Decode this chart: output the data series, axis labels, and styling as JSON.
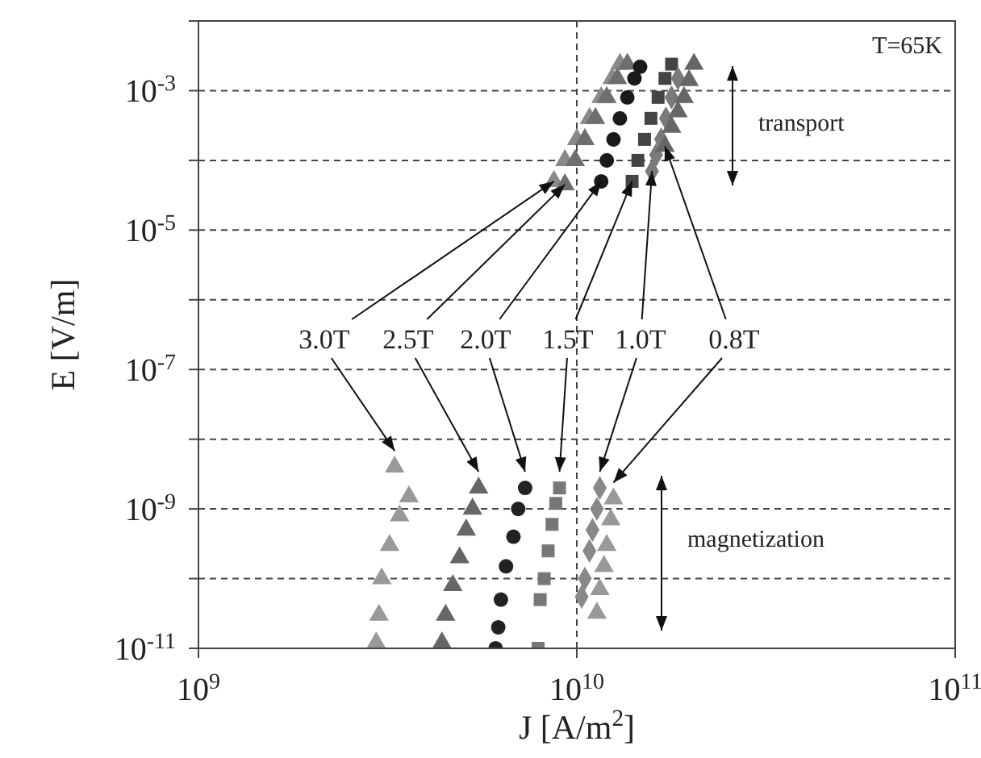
{
  "chart_data": {
    "type": "scatter",
    "xlabel": "J [A/m$^{2}$]",
    "ylabel": "E [V/m]",
    "xlim": [
      1000000000.0,
      100000000000.0
    ],
    "ylim": [
      1e-11,
      0.01
    ],
    "log": "xy",
    "grid": true,
    "xticks": [
      {
        "value": 1000000000.0,
        "label": "10$^{9}$"
      },
      {
        "value": 10000000000.0,
        "label": "10$^{10}$"
      },
      {
        "value": 100000000000.0,
        "label": "10$^{11}$"
      }
    ],
    "yticks": [
      {
        "value": 1e-11,
        "label": "10$^{-11}$"
      },
      {
        "value": 1e-10,
        "label": null
      },
      {
        "value": 1e-09,
        "label": "10$^{-9}$"
      },
      {
        "value": 1e-08,
        "label": null
      },
      {
        "value": 1e-07,
        "label": "10$^{-7}$"
      },
      {
        "value": 1e-06,
        "label": null
      },
      {
        "value": 1e-05,
        "label": "10$^{-5}$"
      },
      {
        "value": 0.0001,
        "label": null
      },
      {
        "value": 0.001,
        "label": "10$^{-3}$"
      },
      {
        "value": 0.01,
        "label": null
      }
    ],
    "series": [
      {
        "color": "#8a8a8a",
        "marker": "triangle",
        "x": [
          8700000000.0,
          9300000000.0,
          10000000000.0,
          10800000000.0,
          11600000000.0,
          12400000000.0,
          13000000000.0
        ],
        "values": [
          5e-05,
          0.0001,
          0.0002,
          0.0004,
          0.0008,
          0.0015,
          0.0024
        ]
      },
      {
        "color": "#6e6e6e",
        "marker": "triangle",
        "x": [
          9300000000.0,
          9900000000.0,
          10500000000.0,
          11200000000.0,
          12000000000.0,
          12800000000.0,
          13600000000.0
        ],
        "values": [
          4.5e-05,
          0.0001,
          0.0002,
          0.0004,
          0.0008,
          0.0015,
          0.0024
        ]
      },
      {
        "color": "#1a1a1a",
        "marker": "circle",
        "x": [
          11600000000.0,
          12000000000.0,
          12500000000.0,
          13000000000.0,
          13600000000.0,
          14200000000.0,
          14700000000.0
        ],
        "values": [
          5e-05,
          0.0001,
          0.0002,
          0.0004,
          0.0008,
          0.0015,
          0.0022
        ]
      },
      {
        "color": "#444444",
        "marker": "square",
        "x": [
          14000000000.0,
          14500000000.0,
          15100000000.0,
          15700000000.0,
          16400000000.0,
          17100000000.0,
          17800000000.0
        ],
        "values": [
          5e-05,
          0.0001,
          0.0002,
          0.0004,
          0.0008,
          0.0015,
          0.0024
        ]
      },
      {
        "color": "#7a7a7a",
        "marker": "diamond",
        "x": [
          15800000000.0,
          16200000000.0,
          16700000000.0,
          17200000000.0,
          17800000000.0,
          18500000000.0
        ],
        "values": [
          7e-05,
          0.00012,
          0.0002,
          0.0004,
          0.0008,
          0.0015
        ]
      },
      {
        "color": "#666666",
        "marker": "triangle",
        "x": [
          17100000000.0,
          17800000000.0,
          18500000000.0,
          19200000000.0,
          19800000000.0,
          20400000000.0
        ],
        "values": [
          0.00016,
          0.0003,
          0.0005,
          0.0008,
          0.0014,
          0.0024
        ]
      },
      {
        "color": "#999999",
        "marker": "triangle",
        "x": [
          2950000000.0,
          3000000000.0,
          3050000000.0,
          3200000000.0,
          3400000000.0,
          3600000000.0,
          3300000000.0
        ],
        "values": [
          1.2e-11,
          3e-11,
          1e-10,
          3e-10,
          8e-10,
          1.5e-09,
          4e-09
        ]
      },
      {
        "color": "#666666",
        "marker": "triangle",
        "x": [
          4400000000.0,
          4500000000.0,
          4700000000.0,
          4900000000.0,
          5100000000.0,
          5300000000.0,
          5500000000.0
        ],
        "values": [
          1.2e-11,
          3e-11,
          8e-11,
          2e-10,
          5e-10,
          1e-09,
          2e-09
        ]
      },
      {
        "color": "#222222",
        "marker": "circle",
        "x": [
          6100000000.0,
          6200000000.0,
          6300000000.0,
          6500000000.0,
          6800000000.0,
          7000000000.0,
          7300000000.0
        ],
        "values": [
          1e-11,
          2e-11,
          5e-11,
          1.5e-10,
          4e-10,
          1e-09,
          2e-09
        ]
      },
      {
        "color": "#777777",
        "marker": "square",
        "x": [
          7900000000.0,
          8000000000.0,
          8200000000.0,
          8400000000.0,
          8600000000.0,
          8800000000.0,
          9000000000.0
        ],
        "values": [
          1e-11,
          5e-11,
          1e-10,
          2.5e-10,
          6e-10,
          1.2e-09,
          2e-09
        ]
      },
      {
        "color": "#888888",
        "marker": "diamond",
        "x": [
          10300000000.0,
          10500000000.0,
          10800000000.0,
          11000000000.0,
          11300000000.0,
          11500000000.0
        ],
        "values": [
          5.5e-11,
          1e-10,
          2.5e-10,
          5e-10,
          1e-09,
          2e-09
        ]
      },
      {
        "color": "#999999",
        "marker": "triangle",
        "x": [
          11300000000.0,
          11500000000.0,
          11800000000.0,
          12000000000.0,
          12300000000.0,
          12500000000.0
        ],
        "values": [
          3.2e-11,
          7e-11,
          1.5e-10,
          3e-10,
          7e-10,
          1.4e-09
        ]
      }
    ],
    "annotations": [
      {
        "text": "3.0T",
        "x": 8700000000.0,
        "y": 5e-05
      },
      {
        "text": "2.5T",
        "x": 9300000000.0,
        "y": 4.5e-05
      },
      {
        "text": "2.0T",
        "x": 11600000000.0,
        "y": 5e-05
      },
      {
        "text": "1.5T",
        "x": 14000000000.0,
        "y": 5e-05
      },
      {
        "text": "1.0T",
        "x": 15800000000.0,
        "y": 7e-05
      },
      {
        "text": "0.8T",
        "x": 17100000000.0,
        "y": 0.00016
      },
      "transport",
      "magnetization",
      "T=65K"
    ]
  }
}
